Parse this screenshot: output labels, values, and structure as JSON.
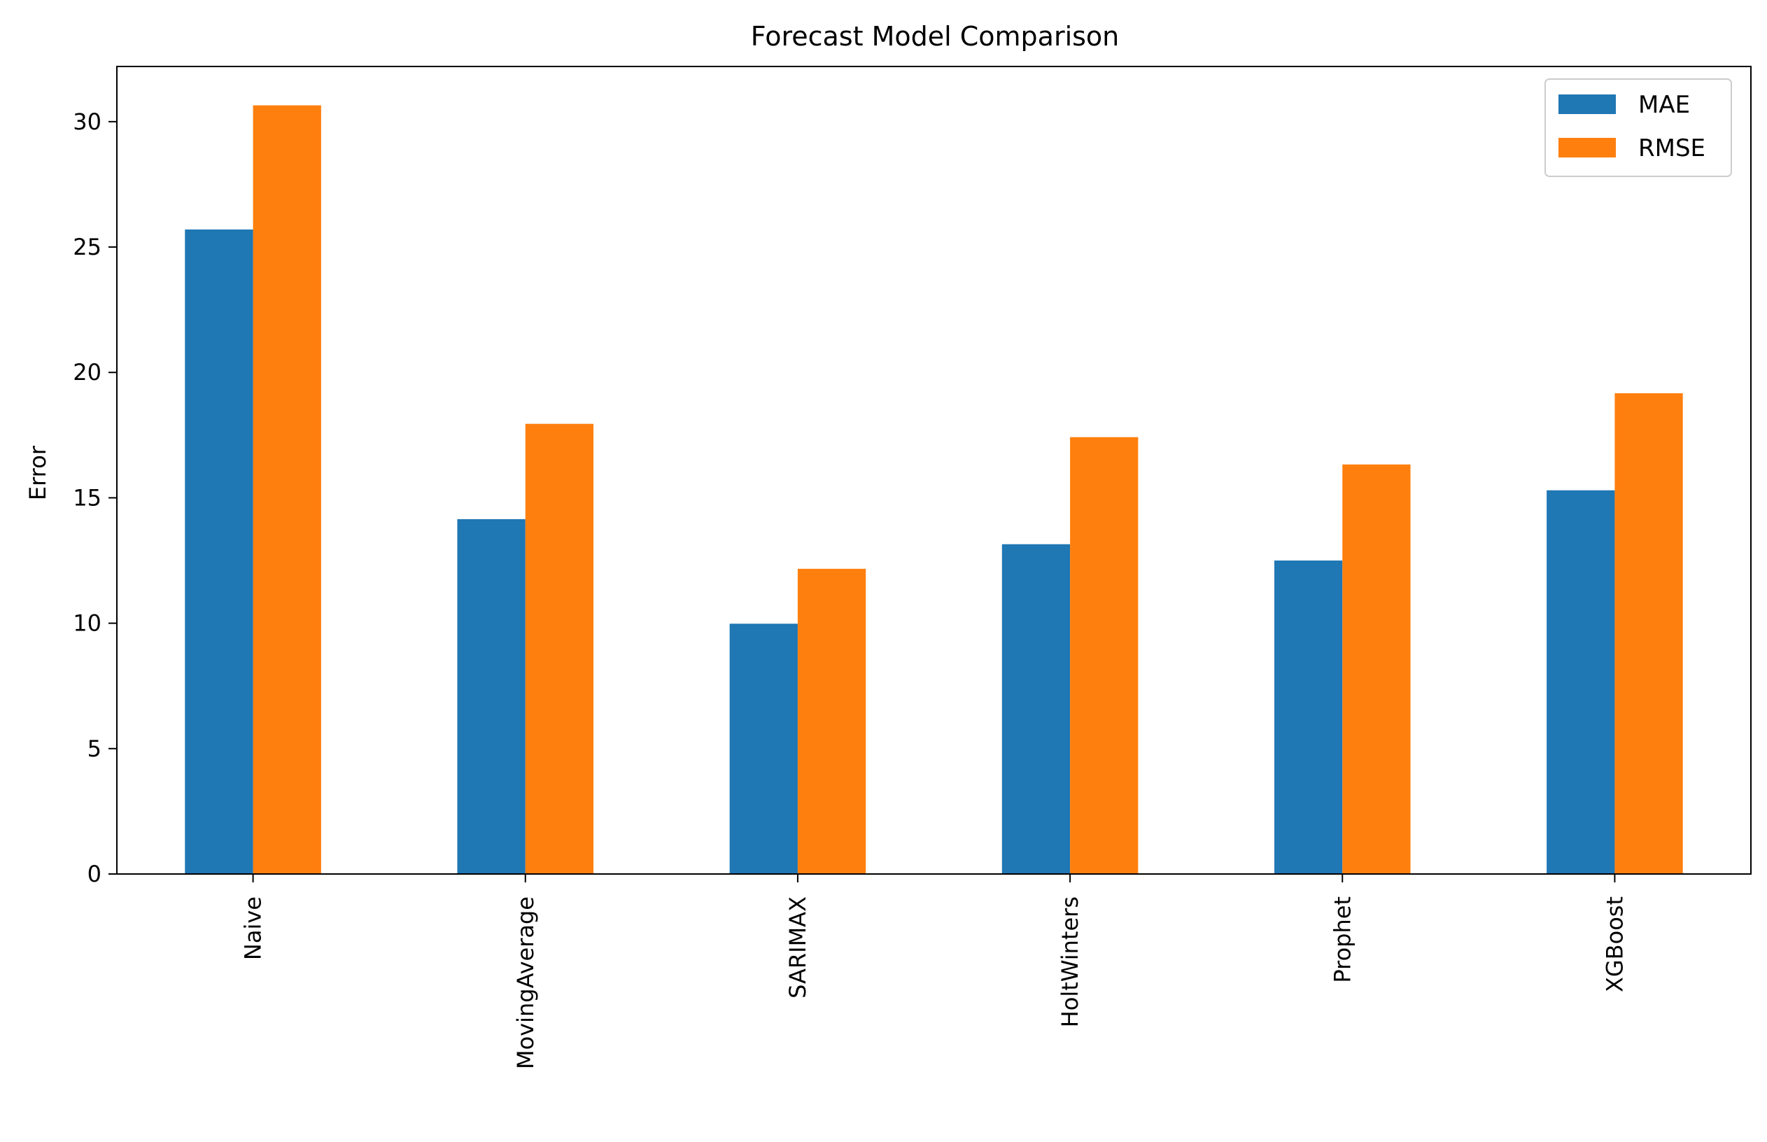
{
  "chart_data": {
    "type": "bar",
    "title": "Forecast Model Comparison",
    "xlabel": "",
    "ylabel": "Error",
    "ylim": [
      0,
      32.2
    ],
    "yticks": [
      0,
      5,
      10,
      15,
      20,
      25,
      30
    ],
    "grid": false,
    "legend_position": "top-right",
    "categories": [
      "Naive",
      "MovingAverage",
      "SARIMAX",
      "HoltWinters",
      "Prophet",
      "XGBoost"
    ],
    "series": [
      {
        "name": "MAE",
        "color": "#1f77b4",
        "values": [
          25.7,
          14.15,
          9.98,
          13.15,
          12.5,
          15.3
        ]
      },
      {
        "name": "RMSE",
        "color": "#ff7f0e",
        "values": [
          30.65,
          17.95,
          12.17,
          17.42,
          16.33,
          19.17
        ]
      }
    ]
  }
}
